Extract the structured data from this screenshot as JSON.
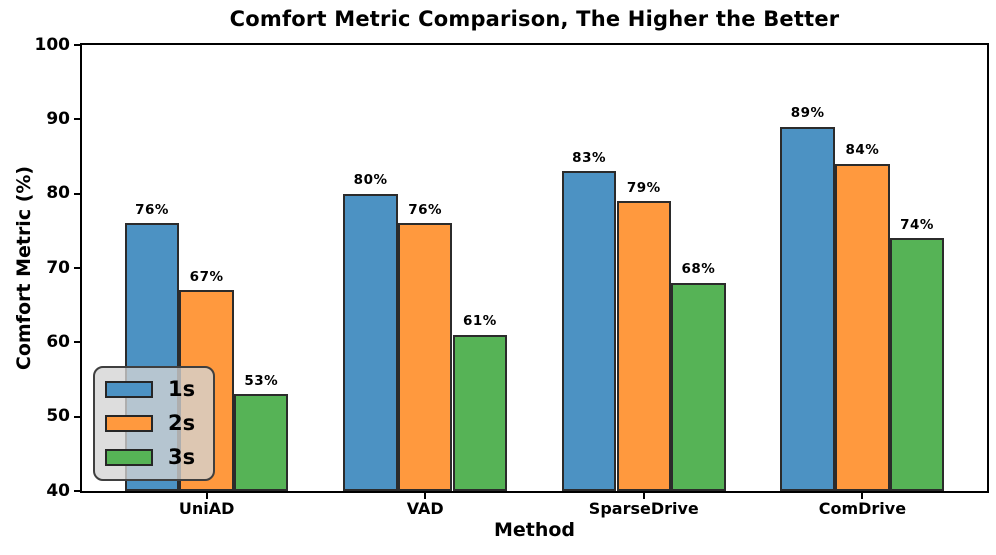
{
  "chart_data": {
    "type": "bar",
    "title": "Comfort Metric Comparison, The Higher the Better",
    "xlabel": "Method",
    "ylabel": "Comfort Metric (%)",
    "categories": [
      "UniAD",
      "VAD",
      "SparseDrive",
      "ComDrive"
    ],
    "series": [
      {
        "name": "1s",
        "color": "#4C92C3",
        "values": [
          76,
          80,
          83,
          89
        ]
      },
      {
        "name": "2s",
        "color": "#FF993E",
        "values": [
          67,
          76,
          79,
          84
        ]
      },
      {
        "name": "3s",
        "color": "#56B356",
        "values": [
          53,
          61,
          68,
          74
        ]
      }
    ],
    "value_labels": [
      [
        "76%",
        "80%",
        "83%",
        "89%"
      ],
      [
        "67%",
        "76%",
        "79%",
        "84%"
      ],
      [
        "53%",
        "61%",
        "68%",
        "74%"
      ]
    ],
    "ylim": [
      40,
      100
    ],
    "ytick_step": 10,
    "ytick_labels": [
      "40",
      "50",
      "60",
      "70",
      "80",
      "90",
      "100"
    ],
    "grid": false,
    "legend_position": "lower-left",
    "legend_labels": [
      "1s",
      "2s",
      "3s"
    ],
    "bar_edge_color": "#2b2b2b",
    "spine_color": "#000000",
    "text_color": "#000000"
  }
}
